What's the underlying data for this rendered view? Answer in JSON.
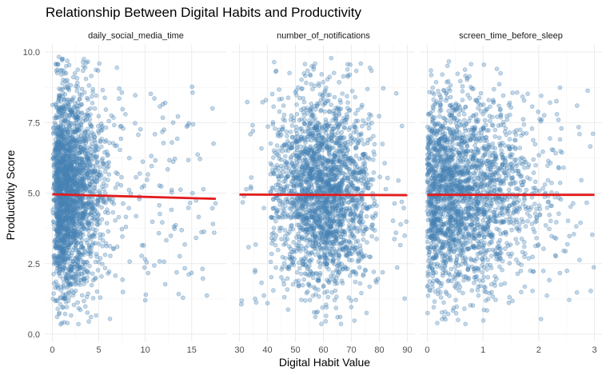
{
  "chart_data": {
    "type": "scatter",
    "title": "Relationship Between Digital Habits and Productivity",
    "xlabel": "Digital Habit Value",
    "ylabel": "Productivity Score",
    "grid": true,
    "legend": "none",
    "point_color": "#4682b4",
    "trend_color": "#e41a1c",
    "y_range": [
      0,
      10
    ],
    "y_ticks": [
      0.0,
      2.5,
      5.0,
      7.5,
      10.0
    ],
    "y_tick_labels": [
      "0.0",
      "2.5",
      "5.0",
      "7.5",
      "10.0"
    ],
    "panels": [
      {
        "name": "daily_social_media_time",
        "x_range": [
          0,
          18
        ],
        "x_ticks": [
          0,
          5,
          10,
          15
        ],
        "x_tick_labels": [
          "0",
          "5",
          "10",
          "15"
        ],
        "bulk_x_range": [
          0,
          7
        ],
        "sparse_x_range": [
          7,
          18
        ],
        "trend": {
          "x_start": 0,
          "y_start": 4.96,
          "x_end": 17.6,
          "y_end": 4.8
        }
      },
      {
        "name": "number_of_notifications",
        "x_range": [
          30,
          90
        ],
        "x_ticks": [
          30,
          40,
          50,
          60,
          70,
          80,
          90
        ],
        "x_tick_labels": [
          "30",
          "40",
          "50",
          "60",
          "70",
          "80",
          "90"
        ],
        "bulk_x_range": [
          43,
          77
        ],
        "sparse_x_range": [
          30,
          90
        ],
        "trend": {
          "x_start": 30,
          "y_start": 4.95,
          "x_end": 90,
          "y_end": 4.93
        }
      },
      {
        "name": "screen_time_before_sleep",
        "x_range": [
          0,
          3
        ],
        "x_ticks": [
          0,
          1,
          2,
          3
        ],
        "x_tick_labels": [
          "0",
          "1",
          "2",
          "3"
        ],
        "bulk_x_range": [
          0,
          2.2
        ],
        "sparse_x_range": [
          0,
          3
        ],
        "trend": {
          "x_start": 0,
          "y_start": 4.94,
          "x_end": 3,
          "y_end": 4.94
        }
      }
    ]
  }
}
